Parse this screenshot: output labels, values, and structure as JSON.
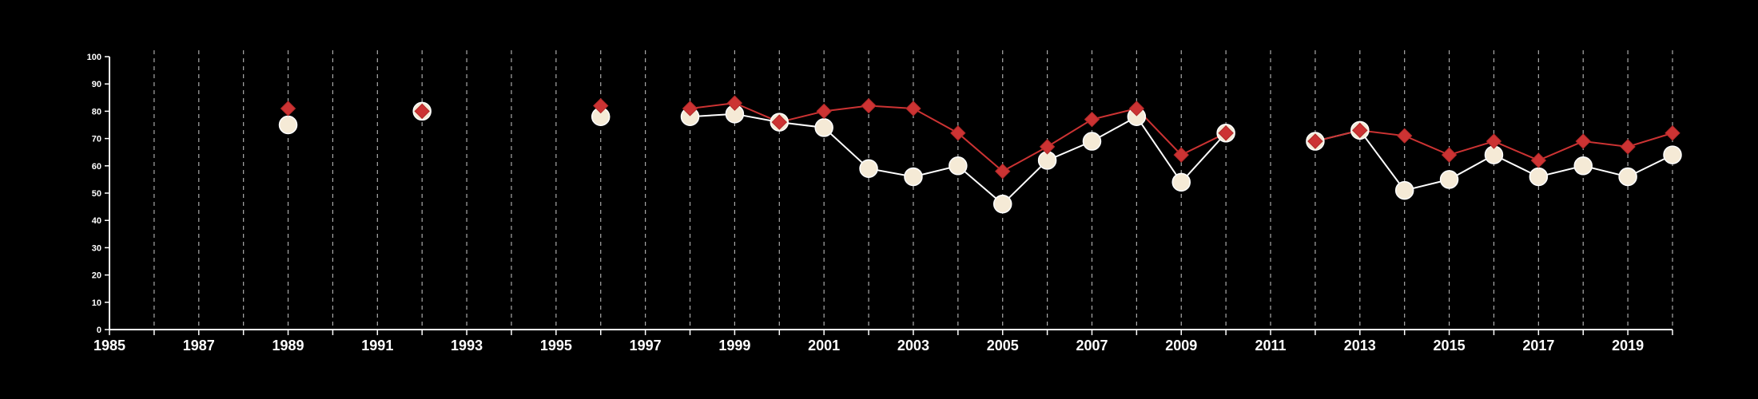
{
  "chart_data": {
    "type": "line",
    "title": "",
    "xlabel": "",
    "ylabel": "",
    "xlim": [
      1985,
      2020
    ],
    "ylim": [
      0,
      100
    ],
    "yticks": [
      0,
      10,
      20,
      30,
      40,
      50,
      60,
      70,
      80,
      90,
      100
    ],
    "xticks": [
      1985,
      1987,
      1989,
      1991,
      1993,
      1995,
      1997,
      1999,
      2001,
      2003,
      2005,
      2007,
      2009,
      2011,
      2013,
      2015,
      2017,
      2019
    ],
    "vertical_gridlines": "dashed, every year",
    "colors": {
      "background": "#000000",
      "axis": "#ffffff",
      "grid": "#aaaaaa",
      "series_circle": "#f5ead6",
      "series_diamond": "#cc3333",
      "circle_line": "#ffffff"
    },
    "series": [
      {
        "marker": "diamond",
        "color": "#cc3333",
        "points": [
          {
            "x": 1989,
            "y": 81
          },
          {
            "x": 1992,
            "y": 80
          },
          {
            "x": 1996,
            "y": 82
          },
          {
            "x": 1998,
            "y": 81
          },
          {
            "x": 1999,
            "y": 83
          },
          {
            "x": 2000,
            "y": 76
          },
          {
            "x": 2001,
            "y": 80
          },
          {
            "x": 2002,
            "y": 82
          },
          {
            "x": 2003,
            "y": 81
          },
          {
            "x": 2004,
            "y": 72
          },
          {
            "x": 2005,
            "y": 58
          },
          {
            "x": 2006,
            "y": 67
          },
          {
            "x": 2007,
            "y": 77
          },
          {
            "x": 2008,
            "y": 81
          },
          {
            "x": 2009,
            "y": 64
          },
          {
            "x": 2010,
            "y": 72
          },
          {
            "x": 2012,
            "y": 69
          },
          {
            "x": 2013,
            "y": 73
          },
          {
            "x": 2014,
            "y": 71
          },
          {
            "x": 2015,
            "y": 64
          },
          {
            "x": 2016,
            "y": 69
          },
          {
            "x": 2017,
            "y": 62
          },
          {
            "x": 2018,
            "y": 69
          },
          {
            "x": 2019,
            "y": 67
          },
          {
            "x": 2020,
            "y": 72
          }
        ]
      },
      {
        "marker": "circle",
        "color": "#f5ead6",
        "points": [
          {
            "x": 1989,
            "y": 75
          },
          {
            "x": 1992,
            "y": 80
          },
          {
            "x": 1996,
            "y": 78
          },
          {
            "x": 1998,
            "y": 78
          },
          {
            "x": 1999,
            "y": 79
          },
          {
            "x": 2000,
            "y": 76
          },
          {
            "x": 2001,
            "y": 74
          },
          {
            "x": 2002,
            "y": 59
          },
          {
            "x": 2003,
            "y": 56
          },
          {
            "x": 2004,
            "y": 60
          },
          {
            "x": 2005,
            "y": 46
          },
          {
            "x": 2006,
            "y": 62
          },
          {
            "x": 2007,
            "y": 69
          },
          {
            "x": 2008,
            "y": 78
          },
          {
            "x": 2009,
            "y": 54
          },
          {
            "x": 2010,
            "y": 72
          },
          {
            "x": 2012,
            "y": 69
          },
          {
            "x": 2013,
            "y": 73
          },
          {
            "x": 2014,
            "y": 51
          },
          {
            "x": 2015,
            "y": 55
          },
          {
            "x": 2016,
            "y": 64
          },
          {
            "x": 2017,
            "y": 56
          },
          {
            "x": 2018,
            "y": 60
          },
          {
            "x": 2019,
            "y": 56
          },
          {
            "x": 2020,
            "y": 64
          }
        ]
      }
    ]
  }
}
